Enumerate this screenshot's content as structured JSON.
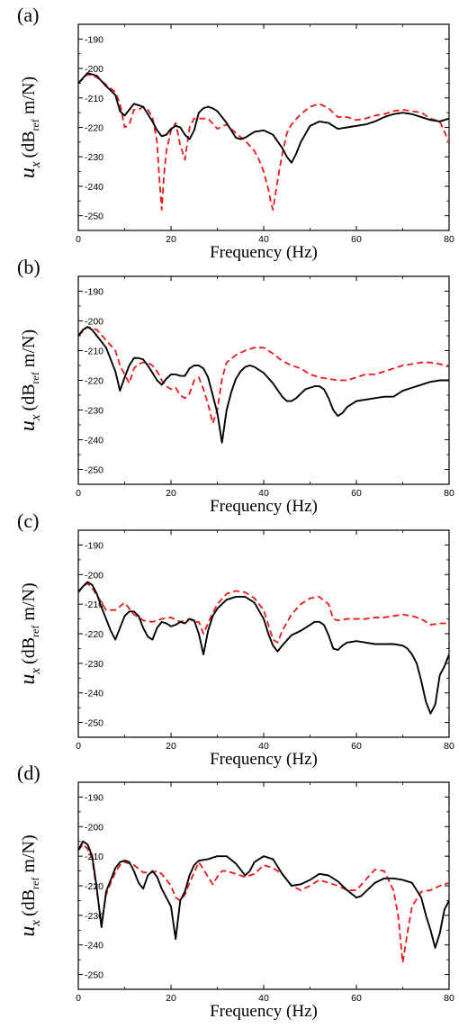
{
  "figure": {
    "xlabel": "Frequency (Hz)",
    "ylabel_main": "u",
    "ylabel_sub": "x",
    "ylabel_unit_open": "(dB",
    "ylabel_unit_sub": "ref",
    "ylabel_unit_close": " m/N)",
    "colors": {
      "solid": "#000000",
      "dashed": "#e8191a"
    }
  },
  "chart_data": [
    {
      "panel_label": "(a)",
      "type": "line",
      "xlim": [
        0,
        80
      ],
      "ylim": [
        -255,
        -185
      ],
      "xticks": [
        "0",
        "20",
        "40",
        "60",
        "80"
      ],
      "yticks": [
        "-190",
        "-200",
        "-210",
        "-220",
        "-230",
        "-240",
        "-250"
      ],
      "series": [
        {
          "style": "solid",
          "color": "#000000",
          "x": [
            0,
            2,
            4,
            6,
            8,
            9,
            10,
            11,
            12,
            13,
            14,
            15,
            16,
            17,
            18,
            19,
            20,
            21,
            22,
            23,
            24,
            25,
            26,
            27,
            28,
            29,
            30,
            32,
            34,
            35,
            36,
            38,
            40,
            42,
            44,
            45,
            46,
            47,
            48,
            50,
            52,
            54,
            56,
            58,
            60,
            62,
            64,
            66,
            68,
            70,
            72,
            74,
            76,
            78,
            80
          ],
          "y": [
            -205,
            -201.5,
            -202.5,
            -206,
            -209,
            -214.5,
            -216,
            -214,
            -212,
            -212.5,
            -213,
            -215.5,
            -218,
            -221,
            -223,
            -222.5,
            -220.5,
            -219.5,
            -220,
            -222.5,
            -224,
            -221,
            -215,
            -213.5,
            -213,
            -213.5,
            -214.5,
            -218.5,
            -223.5,
            -224,
            -223.5,
            -221.5,
            -221,
            -222.5,
            -227,
            -230,
            -232,
            -229,
            -225,
            -219.5,
            -218,
            -218.5,
            -220.5,
            -220,
            -219.5,
            -219,
            -218,
            -216.5,
            -215.5,
            -215,
            -215.5,
            -216.5,
            -217.5,
            -218,
            -217
          ]
        },
        {
          "style": "dashed",
          "color": "#e8191a",
          "x": [
            0,
            2,
            4,
            6,
            8,
            9,
            10,
            11,
            12,
            13,
            14,
            15,
            16,
            17,
            17.5,
            18,
            18.5,
            19,
            20,
            21,
            22,
            23,
            24,
            25,
            26,
            28,
            30,
            32,
            34,
            36,
            38,
            39,
            40,
            41,
            41.5,
            42,
            43,
            44,
            45,
            46,
            48,
            50,
            52,
            54,
            56,
            58,
            60,
            62,
            64,
            66,
            68,
            70,
            72,
            74,
            76,
            78,
            80
          ],
          "y": [
            -205,
            -202,
            -203,
            -205.5,
            -208,
            -212,
            -220,
            -219,
            -214,
            -214,
            -213,
            -214,
            -216.5,
            -225,
            -238,
            -248,
            -236,
            -228,
            -221,
            -218.5,
            -226,
            -231,
            -220,
            -217,
            -217,
            -217,
            -220.5,
            -219,
            -222,
            -224.5,
            -228,
            -231,
            -235,
            -241,
            -245,
            -248,
            -238,
            -229,
            -222,
            -219,
            -215.5,
            -213,
            -212,
            -213.5,
            -216.5,
            -216.5,
            -217.5,
            -217,
            -216,
            -215.5,
            -214.5,
            -214,
            -214.5,
            -215,
            -217,
            -218,
            -225
          ]
        }
      ]
    },
    {
      "panel_label": "(b)",
      "type": "line",
      "xlim": [
        0,
        80
      ],
      "ylim": [
        -255,
        -185
      ],
      "xticks": [
        "0",
        "20",
        "40",
        "60",
        "80"
      ],
      "yticks": [
        "-190",
        "-200",
        "-210",
        "-220",
        "-230",
        "-240",
        "-250"
      ],
      "series": [
        {
          "style": "solid",
          "color": "#000000",
          "x": [
            0,
            1,
            2,
            3,
            4,
            5,
            6,
            7,
            8,
            9,
            10,
            11,
            12,
            13,
            14,
            15,
            16,
            17,
            18,
            19,
            20,
            21,
            22,
            23,
            24,
            25,
            26,
            27,
            28,
            29,
            30,
            31,
            32,
            33,
            34,
            35,
            36,
            37,
            38,
            40,
            42,
            44,
            45,
            46,
            47,
            48,
            49,
            50,
            51,
            52,
            53,
            54,
            55,
            56,
            57,
            58,
            60,
            62,
            64,
            66,
            68,
            70,
            72,
            74,
            76,
            78,
            80
          ],
          "y": [
            -205,
            -203,
            -202,
            -203,
            -205,
            -207,
            -209,
            -213,
            -217,
            -223.5,
            -219,
            -215,
            -212.5,
            -212.5,
            -213,
            -215,
            -217.5,
            -220,
            -221.5,
            -219.5,
            -218,
            -218,
            -218.5,
            -218.5,
            -216,
            -215,
            -215,
            -216,
            -219,
            -225,
            -231,
            -241,
            -230,
            -224,
            -219.5,
            -217,
            -215.5,
            -215,
            -215.5,
            -217.5,
            -221,
            -225.5,
            -227,
            -227,
            -226,
            -224.5,
            -223,
            -222.5,
            -222,
            -222,
            -223,
            -226,
            -230,
            -232,
            -231,
            -229,
            -227,
            -226.5,
            -226,
            -225.5,
            -225.5,
            -223.5,
            -222.5,
            -221.5,
            -220.5,
            -220,
            -220
          ]
        },
        {
          "style": "dashed",
          "color": "#e8191a",
          "x": [
            0,
            2,
            4,
            6,
            8,
            9,
            10,
            11,
            12,
            13,
            14,
            15,
            16,
            17,
            18,
            19,
            20,
            21,
            22,
            23,
            24,
            25,
            26,
            27,
            28,
            29,
            30,
            31,
            32,
            34,
            36,
            38,
            40,
            42,
            44,
            46,
            48,
            50,
            52,
            54,
            56,
            58,
            60,
            62,
            64,
            66,
            68,
            70,
            72,
            74,
            76,
            78,
            80
          ],
          "y": [
            -205,
            -202,
            -203,
            -206.5,
            -210,
            -215,
            -218,
            -221,
            -216,
            -214.5,
            -214,
            -214,
            -215,
            -217,
            -220,
            -222,
            -223,
            -222.5,
            -225,
            -226,
            -224.5,
            -220,
            -219,
            -223,
            -228,
            -234.5,
            -230,
            -219.5,
            -214,
            -211.5,
            -210,
            -209,
            -209,
            -211,
            -213.5,
            -215,
            -216,
            -218,
            -219,
            -219.5,
            -220,
            -220,
            -219,
            -218,
            -218,
            -217,
            -216,
            -215,
            -214.5,
            -214,
            -214,
            -214.5,
            -215.5
          ]
        }
      ]
    },
    {
      "panel_label": "(c)",
      "type": "line",
      "xlim": [
        0,
        80
      ],
      "ylim": [
        -255,
        -185
      ],
      "xticks": [
        "0",
        "20",
        "40",
        "60",
        "80"
      ],
      "yticks": [
        "-190",
        "-200",
        "-210",
        "-220",
        "-230",
        "-240",
        "-250"
      ],
      "series": [
        {
          "style": "solid",
          "color": "#000000",
          "x": [
            0,
            1,
            2,
            3,
            4,
            5,
            6,
            7,
            8,
            9,
            10,
            11,
            12,
            13,
            14,
            15,
            16,
            17,
            18,
            19,
            20,
            21,
            22,
            23,
            24,
            25,
            26,
            27,
            28,
            29,
            30,
            32,
            34,
            36,
            38,
            40,
            41,
            42,
            43,
            44,
            46,
            48,
            50,
            51,
            52,
            53,
            54,
            55,
            56,
            57,
            58,
            60,
            62,
            64,
            66,
            68,
            70,
            71,
            72,
            73,
            74,
            75,
            76,
            77,
            78,
            79,
            80
          ],
          "y": [
            -206,
            -204,
            -202.5,
            -203.5,
            -206.5,
            -211,
            -215,
            -219,
            -222,
            -218,
            -214,
            -212.5,
            -212.5,
            -214,
            -218,
            -221,
            -222,
            -218,
            -216,
            -216.5,
            -217.5,
            -217,
            -216,
            -216.5,
            -215,
            -215.5,
            -220,
            -227,
            -219,
            -214,
            -211.5,
            -208.5,
            -207.5,
            -207.5,
            -209.5,
            -215,
            -220,
            -224,
            -226,
            -224,
            -220.5,
            -219,
            -217,
            -216,
            -216,
            -217,
            -220.5,
            -225,
            -225.5,
            -224,
            -223,
            -222.5,
            -223,
            -223.5,
            -223.5,
            -223.5,
            -224,
            -225,
            -227,
            -230,
            -236,
            -243,
            -247,
            -244,
            -234,
            -231,
            -227
          ]
        },
        {
          "style": "dashed",
          "color": "#e8191a",
          "x": [
            0,
            1,
            2,
            3,
            4,
            6,
            8,
            10,
            12,
            14,
            16,
            18,
            20,
            22,
            24,
            25,
            26,
            27,
            28,
            29,
            30,
            32,
            34,
            36,
            38,
            40,
            41,
            42,
            43,
            44,
            46,
            48,
            50,
            52,
            54,
            55,
            56,
            58,
            60,
            62,
            64,
            66,
            68,
            70,
            72,
            74,
            76,
            78,
            80
          ],
          "y": [
            -206,
            -204,
            -203,
            -204.5,
            -207,
            -212,
            -212,
            -209.5,
            -213.5,
            -215.5,
            -216,
            -215,
            -214.5,
            -216,
            -215,
            -216,
            -216,
            -220,
            -216.5,
            -213,
            -210,
            -206.5,
            -205.5,
            -206,
            -208,
            -212,
            -217,
            -222,
            -223,
            -219,
            -213.5,
            -210,
            -208,
            -207.5,
            -210,
            -215,
            -215.5,
            -215,
            -215,
            -215,
            -214.5,
            -214.5,
            -214,
            -213.5,
            -214,
            -215,
            -217,
            -216.5,
            -216.5
          ]
        }
      ]
    },
    {
      "panel_label": "(d)",
      "type": "line",
      "xlim": [
        0,
        80
      ],
      "ylim": [
        -255,
        -185
      ],
      "xticks": [
        "0",
        "20",
        "40",
        "60",
        "80"
      ],
      "yticks": [
        "-190",
        "-200",
        "-210",
        "-220",
        "-230",
        "-240",
        "-250"
      ],
      "series": [
        {
          "style": "solid",
          "color": "#000000",
          "x": [
            0,
            1,
            2,
            3,
            4,
            5,
            6,
            7,
            8,
            9,
            10,
            11,
            12,
            13,
            14,
            15,
            16,
            17,
            18,
            19,
            20,
            21,
            22,
            23,
            24,
            25,
            26,
            28,
            30,
            32,
            34,
            35,
            36,
            37,
            38,
            40,
            42,
            44,
            46,
            48,
            50,
            52,
            54,
            56,
            58,
            60,
            61,
            62,
            64,
            66,
            68,
            70,
            72,
            74,
            75,
            76,
            77,
            78,
            79,
            80
          ],
          "y": [
            -208,
            -205,
            -206,
            -210,
            -221,
            -234,
            -222,
            -218,
            -214,
            -212,
            -211.5,
            -212,
            -215,
            -219,
            -221,
            -216.5,
            -215,
            -217,
            -221,
            -224,
            -227,
            -238,
            -225,
            -222,
            -216.5,
            -213,
            -211.5,
            -211,
            -210,
            -210,
            -212.5,
            -214.5,
            -216.5,
            -215,
            -212,
            -210,
            -211,
            -216,
            -220,
            -219.5,
            -218,
            -216,
            -216.5,
            -218.5,
            -221.5,
            -224,
            -223.5,
            -222,
            -219,
            -217.5,
            -217.5,
            -218,
            -219,
            -224,
            -230,
            -235,
            -241,
            -236,
            -228,
            -225
          ]
        },
        {
          "style": "dashed",
          "color": "#e8191a",
          "x": [
            0,
            1,
            2,
            3,
            4,
            5,
            6,
            7,
            8,
            9,
            10,
            12,
            14,
            16,
            17,
            18,
            19,
            20,
            21,
            22,
            23,
            24,
            26,
            28,
            29,
            30,
            31,
            32,
            34,
            36,
            38,
            40,
            42,
            44,
            46,
            48,
            50,
            52,
            54,
            56,
            58,
            60,
            62,
            64,
            66,
            68,
            69,
            70,
            71,
            72,
            74,
            76,
            78,
            80
          ],
          "y": [
            -208,
            -206,
            -207.5,
            -211,
            -222,
            -233,
            -223,
            -219,
            -215.5,
            -213,
            -212,
            -213,
            -215.5,
            -215.5,
            -215,
            -216,
            -218,
            -220,
            -224,
            -225,
            -223,
            -219,
            -212,
            -217,
            -219.5,
            -217,
            -215,
            -215,
            -216,
            -217,
            -216,
            -213,
            -214,
            -216,
            -220,
            -221.5,
            -220,
            -218,
            -219,
            -220,
            -221.5,
            -221.5,
            -218,
            -214.5,
            -215,
            -221.5,
            -230,
            -246,
            -236,
            -227,
            -222,
            -221.5,
            -220,
            -219
          ]
        }
      ]
    }
  ]
}
